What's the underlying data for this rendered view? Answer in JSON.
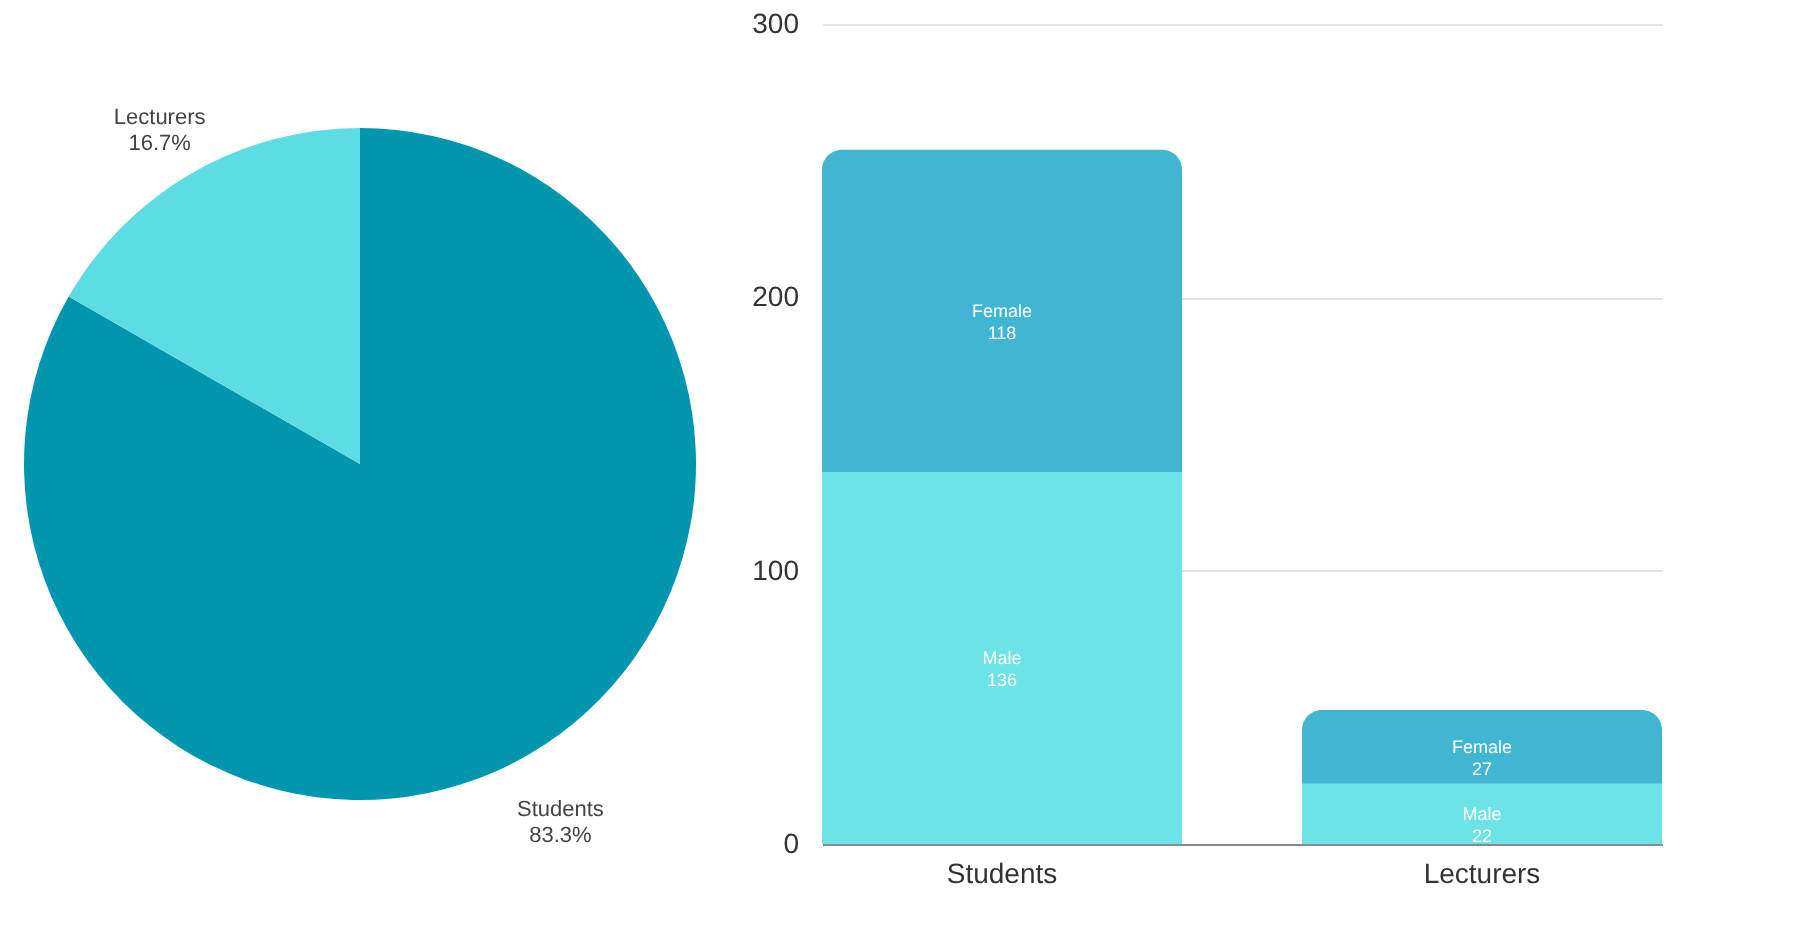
{
  "chart_data": [
    {
      "type": "pie",
      "categories": [
        "Students",
        "Lecturers"
      ],
      "values": [
        83.3,
        16.7
      ],
      "colors": [
        "#0096ae",
        "#5ddde3"
      ],
      "value_labels": [
        "83.3%",
        "16.7%"
      ],
      "legend": false
    },
    {
      "type": "bar",
      "stacked": true,
      "categories": [
        "Students",
        "Lecturers"
      ],
      "series": [
        {
          "name": "Male",
          "color": "#6ce3e6",
          "values": [
            136,
            22
          ]
        },
        {
          "name": "Female",
          "color": "#40b6d4",
          "values": [
            118,
            27
          ]
        }
      ],
      "ylim": [
        0,
        300
      ],
      "yticks": [
        0,
        100,
        200,
        300
      ],
      "grid": "y",
      "data_labels": true
    }
  ]
}
